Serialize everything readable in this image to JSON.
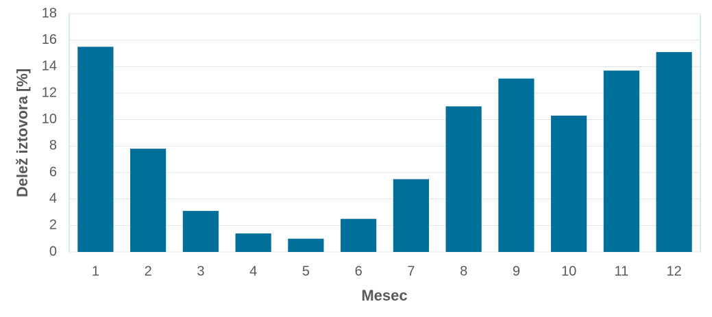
{
  "chart_data": {
    "type": "bar",
    "x_label": "Mesec",
    "y_label": "Delež iztovora [%]",
    "categories": [
      "1",
      "2",
      "3",
      "4",
      "5",
      "6",
      "7",
      "8",
      "9",
      "10",
      "11",
      "12"
    ],
    "values": [
      15.5,
      7.8,
      3.1,
      1.4,
      1.0,
      2.5,
      5.5,
      11.0,
      13.1,
      10.3,
      13.7,
      15.1
    ],
    "color": "#006f9a",
    "ylim": [
      0,
      18
    ],
    "yticks": [
      0,
      2,
      4,
      6,
      8,
      10,
      12,
      14,
      16,
      18
    ],
    "grid": true
  }
}
